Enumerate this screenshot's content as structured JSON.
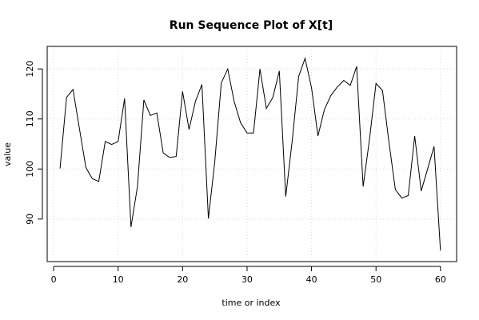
{
  "chart_data": {
    "type": "line",
    "title": "Run Sequence Plot of X[t]",
    "xlabel": "time or index",
    "ylabel": "value",
    "xlim": [
      -1,
      62.5
    ],
    "ylim": [
      81.5,
      124.5
    ],
    "x_ticks": [
      0,
      10,
      20,
      30,
      40,
      50,
      60
    ],
    "y_ticks": [
      90,
      100,
      110,
      120
    ],
    "grid": true,
    "series": [
      {
        "x": [
          1,
          2,
          3,
          4,
          5,
          6,
          7,
          8,
          9,
          10,
          11,
          12,
          13,
          14,
          15,
          16,
          17,
          18,
          19,
          20,
          21,
          22,
          23,
          24,
          25,
          26,
          27,
          28,
          29,
          30,
          31,
          32,
          33,
          34,
          35,
          36,
          37,
          38,
          39,
          40,
          41,
          42,
          43,
          44,
          45,
          46,
          47,
          48,
          49,
          50,
          51,
          52,
          53,
          54,
          55,
          56,
          57,
          58,
          59,
          60
        ],
        "values": [
          100.1,
          114.3,
          115.9,
          108.1,
          100.3,
          98.1,
          97.5,
          105.5,
          104.9,
          105.5,
          114.1,
          88.4,
          96.5,
          113.8,
          110.7,
          111.2,
          103.2,
          102.3,
          102.5,
          115.5,
          107.9,
          113.5,
          116.9,
          90.1,
          101.5,
          117.2,
          120.0,
          113.5,
          109.2,
          107.2,
          107.2,
          120.0,
          112.1,
          114.3,
          119.6,
          94.5,
          105.6,
          118.5,
          122.1,
          116.2,
          106.6,
          111.9,
          114.7,
          116.4,
          117.7,
          116.7,
          120.5,
          96.5,
          106.0,
          117.1,
          115.7,
          105.5,
          95.9,
          94.2,
          94.7,
          106.6,
          95.6,
          100.0,
          104.5,
          83.7
        ]
      }
    ]
  }
}
